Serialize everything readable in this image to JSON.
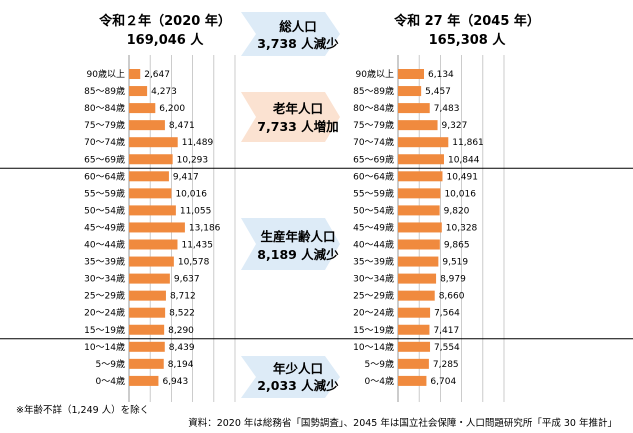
{
  "chart_data": [
    {
      "type": "bar",
      "orientation": "horizontal",
      "title": "令和２年（2020 年）",
      "total": "169,046 人",
      "categories": [
        "90歳以上",
        "85～89歳",
        "80～84歳",
        "75～79歳",
        "70～74歳",
        "65～69歳",
        "60～64歳",
        "55～59歳",
        "50～54歳",
        "45～49歳",
        "40～44歳",
        "35～39歳",
        "30～34歳",
        "25～29歳",
        "20～24歳",
        "15～19歳",
        "10～14歳",
        "5～9歳",
        "0～4歳"
      ],
      "values": [
        2647,
        4273,
        6200,
        8471,
        11489,
        10293,
        9417,
        10016,
        11055,
        13186,
        11435,
        10578,
        9637,
        8712,
        8522,
        8290,
        8439,
        8194,
        6943
      ],
      "value_labels": [
        "2,647",
        "4,273",
        "6,200",
        "8,471",
        "11,489",
        "10,293",
        "9,417",
        "10,016",
        "11,055",
        "13,186",
        "11,435",
        "10,578",
        "9,637",
        "8,712",
        "8,522",
        "8,290",
        "8,439",
        "8,194",
        "6,943"
      ],
      "color": "#F08A3E",
      "xlim": [
        0,
        25000
      ],
      "grid": true
    },
    {
      "type": "bar",
      "orientation": "horizontal",
      "title": "令和 27 年（2045 年）",
      "total": "165,308 人",
      "categories": [
        "90歳以上",
        "85～89歳",
        "80～84歳",
        "75～79歳",
        "70～74歳",
        "65～69歳",
        "60～64歳",
        "55～59歳",
        "50～54歳",
        "45～49歳",
        "40～44歳",
        "35～39歳",
        "30～34歳",
        "25～29歳",
        "20～24歳",
        "15～19歳",
        "10～14歳",
        "5～9歳",
        "0～4歳"
      ],
      "values": [
        6134,
        5457,
        7483,
        9327,
        11861,
        10844,
        10491,
        10016,
        9820,
        10328,
        9865,
        9519,
        8979,
        8660,
        7564,
        7417,
        7554,
        7285,
        6704
      ],
      "value_labels": [
        "6,134",
        "5,457",
        "7,483",
        "9,327",
        "11,861",
        "10,844",
        "10,491",
        "10,016",
        "9,820",
        "10,328",
        "9,865",
        "9,519",
        "8,979",
        "8,660",
        "7,564",
        "7,417",
        "7,554",
        "7,285",
        "6,704"
      ],
      "color": "#F08A3E",
      "xlim": [
        0,
        25000
      ],
      "grid": true
    }
  ],
  "callouts": {
    "total": {
      "line1": "総人口",
      "line2": "3,738 人減少",
      "color": "#DDEBF7"
    },
    "elderly": {
      "line1": "老年人口",
      "line2": "7,733 人増加",
      "color": "#FBE2D1"
    },
    "working": {
      "line1": "生産年齢人口",
      "line2": "8,189 人減少",
      "color": "#DDEBF7"
    },
    "young": {
      "line1": "年少人口",
      "line2": "2,033 人減少",
      "color": "#DDEBF7"
    }
  },
  "footnote": "※年齢不詳（1,249 人）を除く",
  "source": "資料：2020 年は総務省「国勢調査」、2045 年は国立社会保障・人口問題研究所「平成 30 年推計」"
}
